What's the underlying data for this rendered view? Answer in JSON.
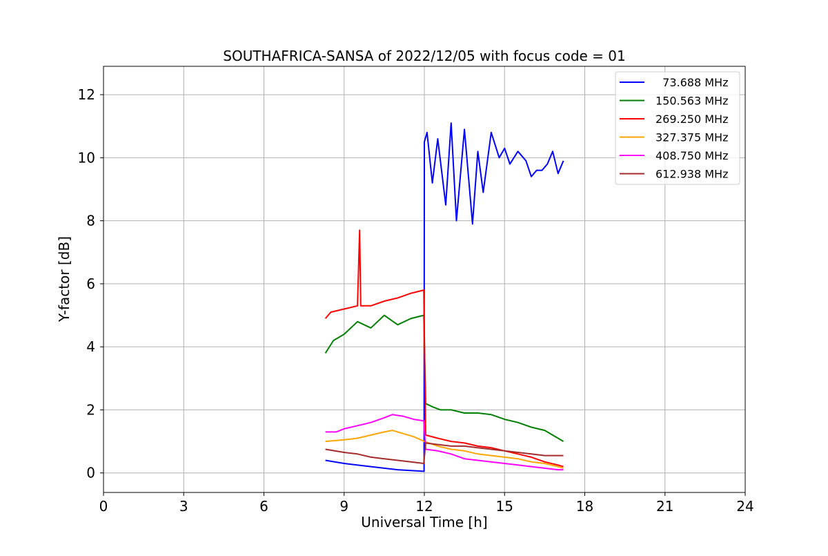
{
  "chart_data": {
    "type": "line",
    "title": "SOUTHAFRICA-SANSA of 2022/12/05 with focus code = 01",
    "xlabel": "Universal Time [h]",
    "ylabel": "Y-factor [dB]",
    "xlim": [
      0,
      24
    ],
    "ylim": [
      -0.62,
      12.9
    ],
    "xticks": [
      0,
      3,
      6,
      9,
      12,
      15,
      18,
      21,
      24
    ],
    "yticks": [
      0,
      2,
      4,
      6,
      8,
      10,
      12
    ],
    "grid": true,
    "legend_position": "upper right",
    "series": [
      {
        "name": "  73.688 MHz",
        "color": "#0000ff",
        "x": [
          8.3,
          9.0,
          10.0,
          11.0,
          11.99,
          12.0,
          12.1,
          12.3,
          12.5,
          12.8,
          13.0,
          13.2,
          13.5,
          13.8,
          14.0,
          14.2,
          14.5,
          14.8,
          15.0,
          15.2,
          15.5,
          15.8,
          16.0,
          16.2,
          16.4,
          16.6,
          16.8,
          17.0,
          17.2
        ],
        "y": [
          0.4,
          0.3,
          0.2,
          0.1,
          0.05,
          10.5,
          10.8,
          9.2,
          10.6,
          8.5,
          11.1,
          8.0,
          10.9,
          7.9,
          10.2,
          8.9,
          10.8,
          10.0,
          10.3,
          9.8,
          10.2,
          9.9,
          9.4,
          9.6,
          9.6,
          9.8,
          10.2,
          9.5,
          9.9
        ]
      },
      {
        "name": "150.563 MHz",
        "color": "#008000",
        "x": [
          8.3,
          8.6,
          9.0,
          9.5,
          10.0,
          10.5,
          11.0,
          11.5,
          11.98,
          12.05,
          12.3,
          12.6,
          13.0,
          13.5,
          14.0,
          14.5,
          15.0,
          15.5,
          16.0,
          16.5,
          17.0,
          17.2
        ],
        "y": [
          3.8,
          4.2,
          4.4,
          4.8,
          4.6,
          5.0,
          4.7,
          4.9,
          5.0,
          2.2,
          2.1,
          2.0,
          2.0,
          1.9,
          1.9,
          1.85,
          1.7,
          1.6,
          1.45,
          1.35,
          1.1,
          1.0
        ]
      },
      {
        "name": "269.250 MHz",
        "color": "#ff0000",
        "x": [
          8.3,
          8.5,
          9.0,
          9.5,
          9.58,
          9.62,
          9.7,
          10.0,
          10.5,
          11.0,
          11.5,
          11.98,
          12.05,
          12.5,
          13.0,
          13.5,
          14.0,
          14.5,
          15.0,
          15.5,
          16.0,
          16.5,
          17.0,
          17.2
        ],
        "y": [
          4.9,
          5.1,
          5.2,
          5.3,
          7.7,
          5.3,
          5.3,
          5.3,
          5.45,
          5.55,
          5.7,
          5.8,
          1.2,
          1.1,
          1.0,
          0.95,
          0.85,
          0.8,
          0.7,
          0.6,
          0.5,
          0.35,
          0.25,
          0.2
        ]
      },
      {
        "name": "327.375 MHz",
        "color": "#ffa500",
        "x": [
          8.3,
          9.0,
          9.5,
          10.0,
          10.5,
          10.8,
          11.2,
          11.6,
          12.0,
          12.5,
          13.0,
          13.5,
          14.0,
          14.5,
          15.0,
          15.5,
          16.0,
          16.5,
          17.0,
          17.2
        ],
        "y": [
          1.0,
          1.05,
          1.1,
          1.2,
          1.3,
          1.35,
          1.25,
          1.15,
          1.0,
          0.85,
          0.75,
          0.7,
          0.6,
          0.55,
          0.5,
          0.45,
          0.35,
          0.3,
          0.2,
          0.15
        ]
      },
      {
        "name": "408.750 MHz",
        "color": "#ff00ff",
        "x": [
          8.3,
          8.7,
          9.0,
          9.5,
          10.0,
          10.5,
          10.8,
          11.2,
          11.6,
          11.98,
          12.05,
          12.5,
          13.0,
          13.5,
          14.0,
          14.5,
          15.0,
          15.5,
          16.0,
          16.5,
          17.0,
          17.2
        ],
        "y": [
          1.3,
          1.3,
          1.4,
          1.5,
          1.6,
          1.75,
          1.85,
          1.8,
          1.7,
          1.65,
          0.75,
          0.7,
          0.6,
          0.45,
          0.4,
          0.35,
          0.3,
          0.25,
          0.2,
          0.15,
          0.1,
          0.1
        ]
      },
      {
        "name": "612.938 MHz",
        "color": "#a52a2a",
        "x": [
          8.3,
          9.0,
          9.5,
          10.0,
          10.5,
          11.0,
          11.5,
          11.98,
          12.05,
          12.5,
          13.0,
          13.5,
          14.0,
          14.5,
          15.0,
          15.5,
          16.0,
          16.5,
          17.0,
          17.2
        ],
        "y": [
          0.75,
          0.65,
          0.6,
          0.5,
          0.45,
          0.4,
          0.35,
          0.3,
          0.95,
          0.9,
          0.85,
          0.85,
          0.8,
          0.75,
          0.7,
          0.65,
          0.6,
          0.55,
          0.55,
          0.55
        ]
      }
    ]
  }
}
